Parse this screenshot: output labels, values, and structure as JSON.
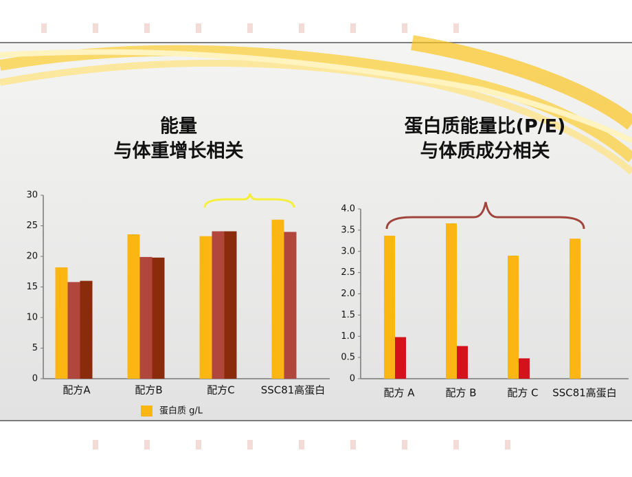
{
  "chart_data": [
    {
      "type": "bar",
      "title": "能量",
      "subtitle": "与体重增长相关",
      "categories": [
        "配方A",
        "配方B",
        "配方C",
        "SSC81高蛋白"
      ],
      "series": [
        {
          "name": "蛋白质 g/L",
          "color": "#fbb614",
          "values": [
            18.2,
            23.6,
            23.3,
            26.0
          ]
        },
        {
          "color": "#b0463c",
          "values": [
            15.8,
            19.9,
            24.1,
            24.0
          ]
        },
        {
          "color": "#8a2c0c",
          "values": [
            16.0,
            19.8,
            24.1,
            null
          ]
        }
      ],
      "ylim": [
        0,
        30
      ],
      "yticks": [
        0,
        5,
        10,
        15,
        20,
        25,
        30
      ],
      "legend": "bottom"
    },
    {
      "type": "bar",
      "title": "蛋白质能量比(P/E)",
      "subtitle": "与体质成分相关",
      "categories": [
        "配方 A",
        "配方 B",
        "配方 C",
        "SSC81高蛋白"
      ],
      "series": [
        {
          "color": "#fbb614",
          "values": [
            3.37,
            3.66,
            2.9,
            3.3
          ]
        },
        {
          "color": "#d4121a",
          "values": [
            0.98,
            0.77,
            0.48,
            null
          ]
        }
      ],
      "ylim": [
        0,
        4
      ],
      "yticks": [
        0,
        0.5,
        {
          "value": 1,
          "label": "1.0"
        },
        1.5,
        {
          "value": 2,
          "label": "2.0"
        },
        2.5,
        {
          "value": 3,
          "label": "3.0"
        },
        3.5,
        {
          "value": 4,
          "label": "4.0"
        }
      ]
    }
  ]
}
